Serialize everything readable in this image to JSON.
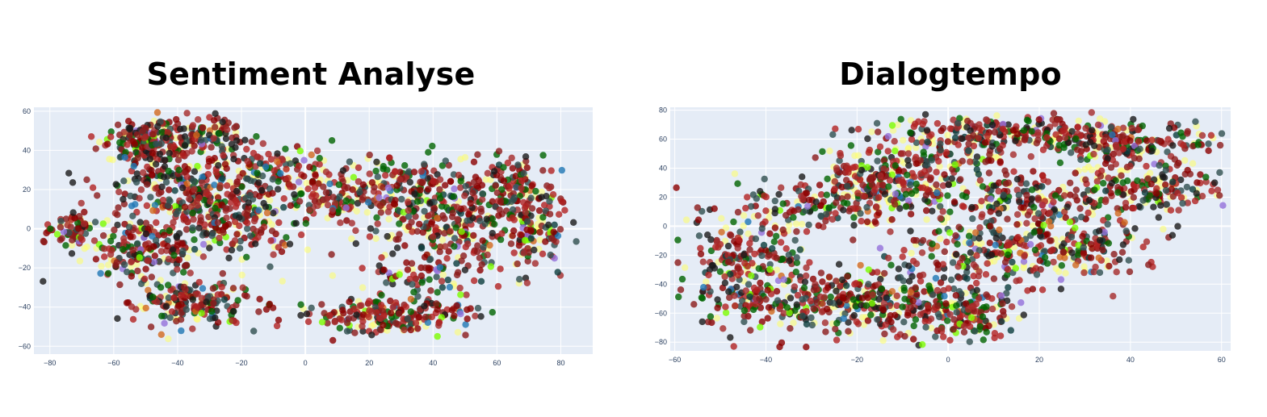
{
  "panels": [
    {
      "title": "Sentiment Analyse"
    },
    {
      "title": "Dialogtempo"
    }
  ],
  "chart_data": [
    {
      "type": "scatter",
      "title": "Sentiment Analyse",
      "xlabel": "",
      "ylabel": "",
      "xlim": [
        -85,
        90
      ],
      "ylim": [
        -64,
        62
      ],
      "xticks": [
        -80,
        -60,
        -40,
        -20,
        0,
        20,
        40,
        60,
        80
      ],
      "yticks": [
        -60,
        -40,
        -20,
        0,
        20,
        40,
        60
      ],
      "xtick_labels": [
        "−80",
        "−60",
        "−40",
        "−20",
        "0",
        "20",
        "40",
        "60",
        "80"
      ],
      "ytick_labels": [
        "−60",
        "−40",
        "−20",
        "0",
        "20",
        "40",
        "60"
      ],
      "grid": true,
      "plot_background": "#e5ecf6",
      "marker_colors": [
        "#8b0000",
        "#b22222",
        "#8b1a1a",
        "#a52a2a",
        "#2f4f4f",
        "#1a1a1a",
        "#006400",
        "#1f77b4",
        "#d2691e",
        "#9370db",
        "#7cfc00",
        "#ffff66",
        "#0b3d3d"
      ],
      "clusters": [
        {
          "x": -48,
          "y": 45,
          "sx": 8,
          "sy": 6,
          "weight": 0.09
        },
        {
          "x": -30,
          "y": 48,
          "sx": 6,
          "sy": 4,
          "weight": 0.04
        },
        {
          "x": -40,
          "y": 20,
          "sx": 12,
          "sy": 8,
          "weight": 0.1
        },
        {
          "x": -22,
          "y": 5,
          "sx": 10,
          "sy": 10,
          "weight": 0.09
        },
        {
          "x": -50,
          "y": -10,
          "sx": 10,
          "sy": 8,
          "weight": 0.08
        },
        {
          "x": -35,
          "y": -38,
          "sx": 9,
          "sy": 6,
          "weight": 0.08
        },
        {
          "x": -73,
          "y": 0,
          "sx": 4,
          "sy": 4,
          "weight": 0.03
        },
        {
          "x": -10,
          "y": 30,
          "sx": 10,
          "sy": 6,
          "weight": 0.05
        },
        {
          "x": 30,
          "y": 20,
          "sx": 12,
          "sy": 8,
          "weight": 0.09
        },
        {
          "x": 45,
          "y": 0,
          "sx": 12,
          "sy": 12,
          "weight": 0.1
        },
        {
          "x": 65,
          "y": 20,
          "sx": 6,
          "sy": 8,
          "weight": 0.05
        },
        {
          "x": 72,
          "y": -2,
          "sx": 5,
          "sy": 10,
          "weight": 0.05
        },
        {
          "x": 25,
          "y": -45,
          "sx": 14,
          "sy": 4,
          "weight": 0.09
        },
        {
          "x": 8,
          "y": 15,
          "sx": 6,
          "sy": 5,
          "weight": 0.03
        },
        {
          "x": 35,
          "y": -25,
          "sx": 12,
          "sy": 6,
          "weight": 0.03
        }
      ]
    },
    {
      "type": "scatter",
      "title": "Dialogtempo",
      "xlabel": "",
      "ylabel": "",
      "xlim": [
        -61,
        62
      ],
      "ylim": [
        -86,
        82
      ],
      "xticks": [
        -60,
        -40,
        -20,
        0,
        20,
        40,
        60
      ],
      "yticks": [
        -80,
        -60,
        -40,
        -20,
        0,
        20,
        40,
        60,
        80
      ],
      "xtick_labels": [
        "−60",
        "−40",
        "−20",
        "0",
        "20",
        "40",
        "60"
      ],
      "ytick_labels": [
        "−80",
        "−60",
        "−40",
        "−20",
        "0",
        "20",
        "40",
        "60",
        "80"
      ],
      "grid": true,
      "plot_background": "#e5ecf6",
      "marker_colors": [
        "#8b0000",
        "#b22222",
        "#8b1a1a",
        "#a52a2a",
        "#2f4f4f",
        "#1a1a1a",
        "#006400",
        "#1f77b4",
        "#d2691e",
        "#9370db",
        "#7cfc00",
        "#ffff66",
        "#0b3d3d"
      ],
      "clusters": [
        {
          "x": -45,
          "y": -25,
          "sx": 7,
          "sy": 20,
          "weight": 0.1
        },
        {
          "x": -30,
          "y": -55,
          "sx": 10,
          "sy": 10,
          "weight": 0.08
        },
        {
          "x": -10,
          "y": -50,
          "sx": 10,
          "sy": 12,
          "weight": 0.1
        },
        {
          "x": -25,
          "y": 15,
          "sx": 10,
          "sy": 8,
          "weight": 0.07
        },
        {
          "x": -5,
          "y": 45,
          "sx": 10,
          "sy": 12,
          "weight": 0.08
        },
        {
          "x": 15,
          "y": 65,
          "sx": 14,
          "sy": 6,
          "weight": 0.1
        },
        {
          "x": 40,
          "y": 55,
          "sx": 10,
          "sy": 8,
          "weight": 0.08
        },
        {
          "x": 45,
          "y": 25,
          "sx": 8,
          "sy": 8,
          "weight": 0.06
        },
        {
          "x": 15,
          "y": 20,
          "sx": 12,
          "sy": 10,
          "weight": 0.09
        },
        {
          "x": 10,
          "y": -15,
          "sx": 10,
          "sy": 12,
          "weight": 0.08
        },
        {
          "x": 30,
          "y": -15,
          "sx": 8,
          "sy": 12,
          "weight": 0.06
        },
        {
          "x": 5,
          "y": -60,
          "sx": 6,
          "sy": 10,
          "weight": 0.05
        },
        {
          "x": -15,
          "y": 30,
          "sx": 8,
          "sy": 8,
          "weight": 0.05
        }
      ]
    }
  ]
}
